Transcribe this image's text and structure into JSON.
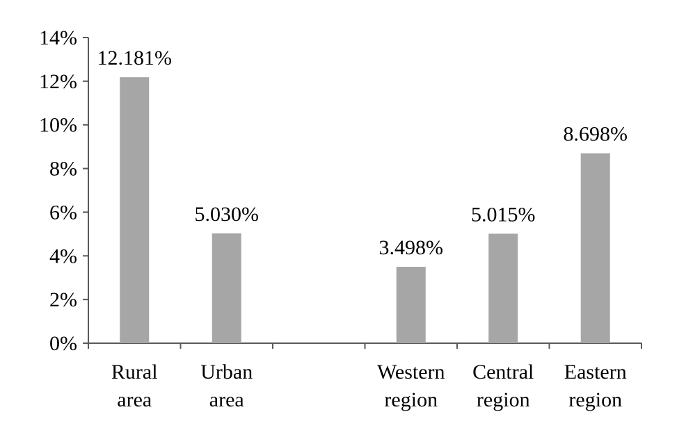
{
  "chart_data": {
    "type": "bar",
    "categories": [
      [
        "Rural",
        "area"
      ],
      [
        "Urban",
        "area"
      ],
      [
        "",
        ""
      ],
      [
        "Western",
        "region"
      ],
      [
        "Central",
        "region"
      ],
      [
        "Eastern",
        "region"
      ]
    ],
    "values": [
      12.181,
      5.03,
      null,
      3.498,
      5.015,
      8.698
    ],
    "data_labels": [
      "12.181%",
      "5.030%",
      "",
      "3.498%",
      "5.015%",
      "8.698%"
    ],
    "y_ticks": [
      "0%",
      "2%",
      "4%",
      "6%",
      "8%",
      "10%",
      "12%",
      "14%"
    ],
    "ylim": [
      0,
      14
    ],
    "y_tick_step": 2,
    "bar_color": "#a6a6a6",
    "axis_color": "#595959",
    "grid": false,
    "legend": "none",
    "title": "",
    "xlabel": "",
    "ylabel": ""
  }
}
